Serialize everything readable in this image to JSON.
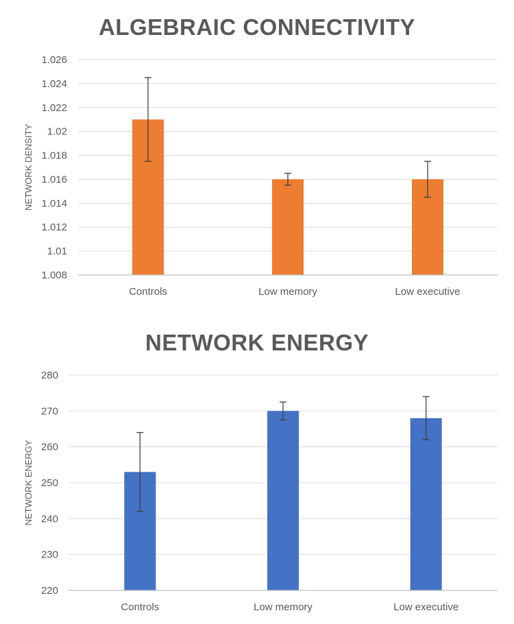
{
  "chart_data": [
    {
      "type": "bar",
      "title": "ALGEBRAIC CONNECTIVITY",
      "xlabel": "",
      "ylabel": "NETWORK DENSITY",
      "categories": [
        "Controls",
        "Low memory",
        "Low executive"
      ],
      "values": [
        1.021,
        1.016,
        1.016
      ],
      "error_low": [
        1.0175,
        1.0155,
        1.0145
      ],
      "error_high": [
        1.0245,
        1.0165,
        1.0175
      ],
      "ylim": [
        1.008,
        1.026
      ],
      "yticks": [
        "1.008",
        "1.01",
        "1.012",
        "1.014",
        "1.016",
        "1.018",
        "1.02",
        "1.022",
        "1.024",
        "1.026"
      ],
      "grid": true,
      "color": "#ED7D31"
    },
    {
      "type": "bar",
      "title": "NETWORK ENERGY",
      "xlabel": "",
      "ylabel": "NETWORK ENERGY",
      "categories": [
        "Controls",
        "Low memory",
        "Low executive"
      ],
      "values": [
        253,
        270,
        268
      ],
      "error_low": [
        242,
        267.5,
        262
      ],
      "error_high": [
        264,
        272.5,
        274
      ],
      "ylim": [
        220,
        280
      ],
      "yticks": [
        "220",
        "230",
        "240",
        "250",
        "260",
        "270",
        "280"
      ],
      "grid": true,
      "color": "#4472C4"
    }
  ]
}
